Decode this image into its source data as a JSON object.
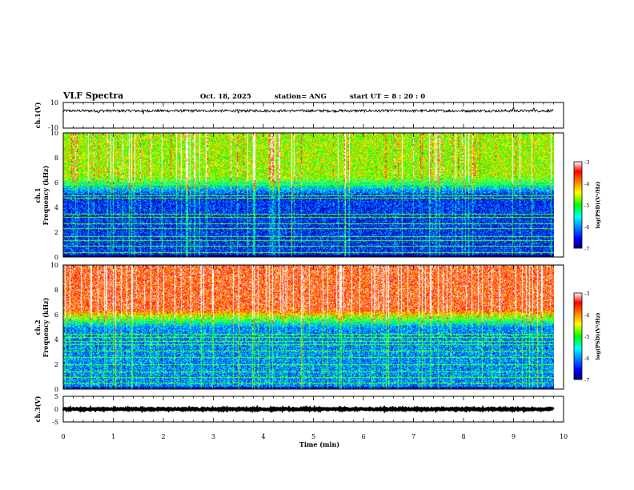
{
  "header": {
    "title": "VLF Spectra",
    "date": "Oct. 18, 2025",
    "station": "station= ANG",
    "start": "start  UT =  8 : 20 : 0"
  },
  "chart_data": [
    {
      "type": "line",
      "name": "ch1-voltage",
      "ylabel": "ch.1(V)",
      "ylim": [
        -10,
        10
      ],
      "ytick_labels": [
        "10",
        "-10"
      ],
      "baseline": 3.5,
      "noise_amplitude": 1.0,
      "spikes": [
        [
          0.7,
          -1.5
        ],
        [
          1.6,
          -2.5
        ],
        [
          3.5,
          -1.6
        ],
        [
          9.0,
          2.6
        ],
        [
          9.4,
          2.0
        ]
      ]
    },
    {
      "type": "heatmap",
      "name": "ch1-spectrogram",
      "ylabel": "ch.1",
      "ylabel2": "Frequency (kHz)",
      "ylim": [
        0,
        10
      ],
      "ytick_labels": [
        "0",
        "2",
        "4",
        "6",
        "8",
        "10"
      ],
      "colorbar": {
        "label": "log(PSD)(V²/Hz)",
        "range": [
          -7,
          -3
        ],
        "tick_labels": [
          "-3",
          "-4",
          "-5",
          "-6",
          "-7"
        ]
      },
      "background_level": -6.4,
      "upper_band_level": -4.6,
      "horizontal_lines_khz": [
        0.4,
        0.9,
        1.35,
        1.7,
        2.35,
        2.7,
        3.2,
        3.5,
        4.75,
        4.95,
        5.9
      ]
    },
    {
      "type": "heatmap",
      "name": "ch2-spectrogram",
      "ylabel": "ch.2",
      "ylabel2": "Frequency (kHz)",
      "ylim": [
        0,
        10
      ],
      "ytick_labels": [
        "0",
        "2",
        "4",
        "6",
        "8",
        "10"
      ],
      "colorbar": {
        "label": "log(PSD)(V²/Hz)",
        "range": [
          -7,
          -3
        ],
        "tick_labels": [
          "-3",
          "-4",
          "-5",
          "-6",
          "-7"
        ]
      },
      "background_level": -6.0,
      "upper_band_level": -3.6,
      "horizontal_lines_khz": [
        0.5,
        0.95,
        1.4,
        2.0,
        2.6,
        3.1,
        3.6,
        3.9,
        4.2,
        4.45
      ]
    },
    {
      "type": "line",
      "name": "ch3-voltage",
      "ylabel": "ch.3(V)",
      "ylim": [
        -5,
        5
      ],
      "ytick_labels": [
        "5",
        "0",
        "-5"
      ],
      "baseline": 0.0,
      "noise_amplitude": 0.25
    }
  ],
  "x_axis": {
    "xlabel": "Time (min)",
    "xlim": [
      0,
      10
    ],
    "tick_labels": [
      "0",
      "1",
      "2",
      "3",
      "4",
      "5",
      "6",
      "7",
      "8",
      "9",
      "10"
    ],
    "data_end_min": 9.8
  }
}
